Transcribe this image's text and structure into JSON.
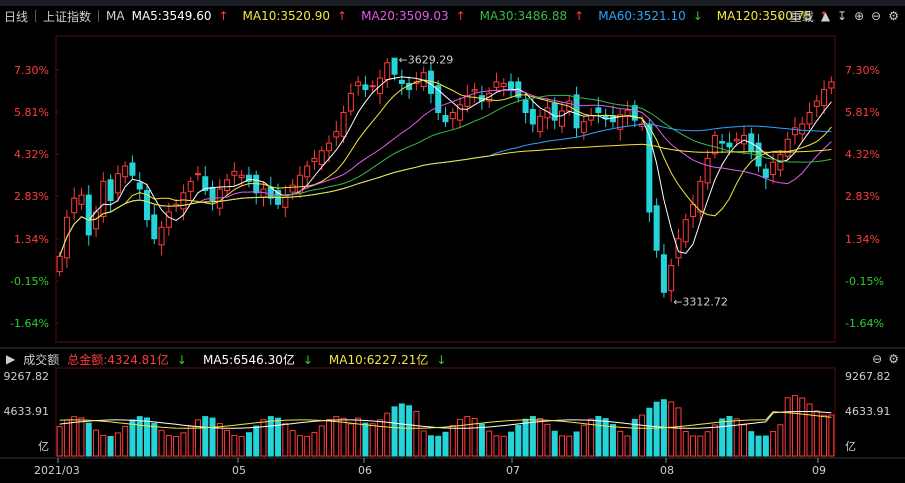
{
  "toolbar": {
    "period": "日线",
    "index_name": "上证指数",
    "ma_label": "MA",
    "ma_items": [
      {
        "label": "MA5:3549.60",
        "arrow": "↑",
        "color": "#ffffff",
        "arrow_color": "#ff3b3b"
      },
      {
        "label": "MA10:3520.90",
        "arrow": "↑",
        "color": "#f5e63c",
        "arrow_color": "#ff3b3b"
      },
      {
        "label": "MA20:3509.03",
        "arrow": "↑",
        "color": "#e05ce6",
        "arrow_color": "#ff3b3b"
      },
      {
        "label": "MA30:3486.88",
        "arrow": "↑",
        "color": "#3bb84a",
        "arrow_color": "#ff3b3b"
      },
      {
        "label": "MA60:3521.10",
        "arrow": "↓",
        "color": "#2ea4ff",
        "arrow_color": "#2ad02a"
      },
      {
        "label": "MA120:3500.75",
        "arrow": "↑",
        "color": "#f5e63c",
        "arrow_color": "#ff3b3b"
      }
    ],
    "chevron": "‹",
    "overlay": "重载",
    "icons": [
      "lock-icon",
      "download-icon",
      "zoom-in-icon",
      "zoom-out-icon",
      "settings-icon"
    ]
  },
  "volume_bar": {
    "label": "成交额",
    "total": "总金额:4324.81亿",
    "total_arrow": "↓",
    "ma5": "MA5:6546.30亿",
    "ma5_arrow": "↓",
    "ma10": "MA10:6227.21亿",
    "ma10_arrow": "↓"
  },
  "chart_data": {
    "type": "candlestick",
    "y_ticks_pct": [
      "7.30%",
      "5.81%",
      "4.32%",
      "2.83%",
      "1.34%",
      "-0.15%",
      "-1.64%"
    ],
    "y_tick_colors": [
      "#ff3b3b",
      "#ff3b3b",
      "#ff3b3b",
      "#ff3b3b",
      "#ff3b3b",
      "#2ad02a",
      "#2ad02a"
    ],
    "annotations": [
      {
        "text": "3629.29",
        "kind": "high"
      },
      {
        "text": "3312.72",
        "kind": "low"
      }
    ],
    "volume_ticks": [
      "9267.82",
      "4633.91",
      "亿"
    ],
    "x_ticks": [
      "2021/03",
      "05",
      "06",
      "07",
      "08",
      "09"
    ],
    "closes": [
      3372,
      3423,
      3448,
      3452,
      3400,
      3430,
      3470,
      3445,
      3480,
      3490,
      3478,
      3460,
      3420,
      3395,
      3410,
      3430,
      3440,
      3455,
      3470,
      3480,
      3458,
      3445,
      3460,
      3472,
      3483,
      3478,
      3470,
      3455,
      3460,
      3448,
      3440,
      3452,
      3465,
      3478,
      3490,
      3500,
      3510,
      3520,
      3535,
      3560,
      3585,
      3600,
      3590,
      3595,
      3605,
      3625,
      3610,
      3598,
      3590,
      3600,
      3612,
      3585,
      3560,
      3548,
      3560,
      3570,
      3582,
      3590,
      3575,
      3585,
      3600,
      3598,
      3590,
      3580,
      3560,
      3545,
      3555,
      3566,
      3550,
      3562,
      3575,
      3540,
      3548,
      3556,
      3560,
      3552,
      3548,
      3557,
      3563,
      3550,
      3545,
      3430,
      3380,
      3325,
      3360,
      3395,
      3420,
      3440,
      3470,
      3500,
      3530,
      3520,
      3515,
      3525,
      3530,
      3510,
      3490,
      3475,
      3495,
      3505,
      3525,
      3540,
      3545,
      3560,
      3575,
      3590,
      3600
    ]
  }
}
